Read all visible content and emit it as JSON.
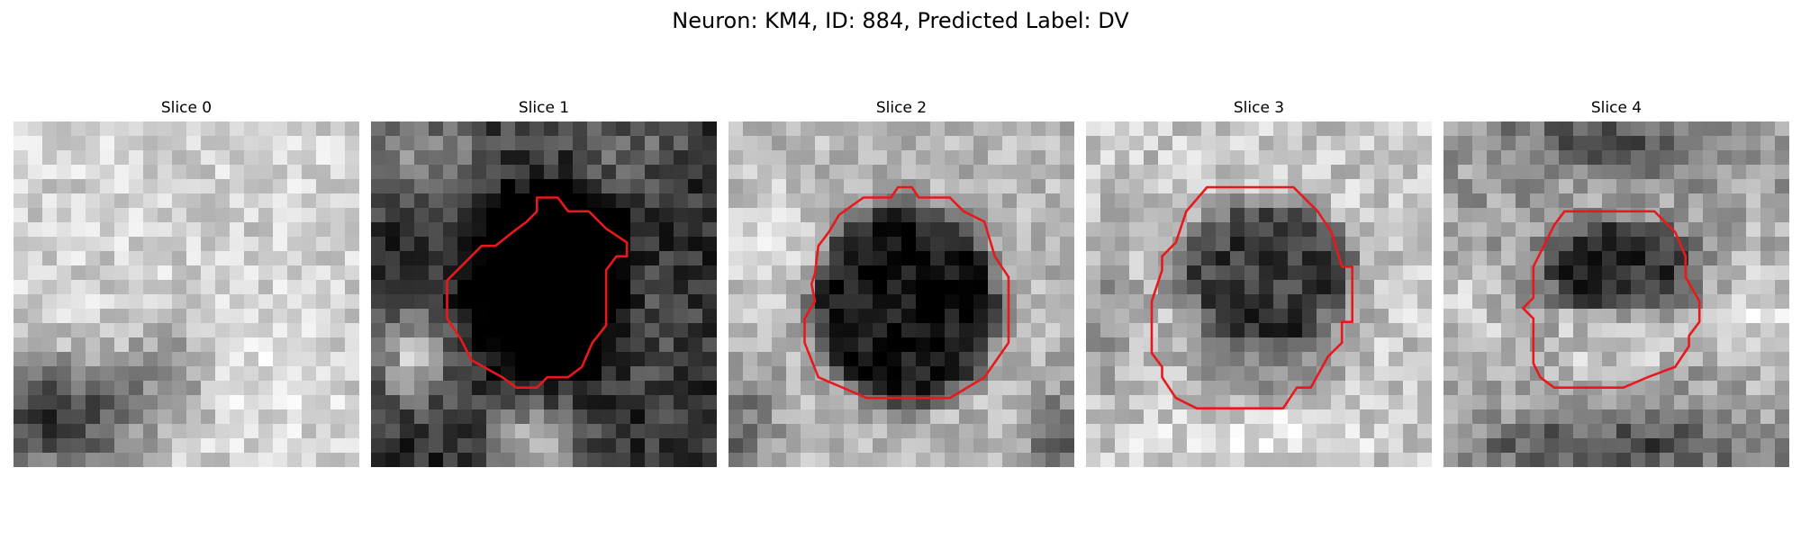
{
  "figure": {
    "title": "Neuron: KM4, ID: 884, Predicted Label: DV"
  },
  "panels": [
    {
      "title": "Slice 0",
      "has_contour": false
    },
    {
      "title": "Slice 1",
      "has_contour": true
    },
    {
      "title": "Slice 2",
      "has_contour": true
    },
    {
      "title": "Slice 3",
      "has_contour": true
    },
    {
      "title": "Slice 4",
      "has_contour": true
    }
  ],
  "colors": {
    "contour": "#e8191c",
    "background": "#ffffff"
  },
  "image": {
    "colormap": "grayscale",
    "grid_size": 24
  }
}
